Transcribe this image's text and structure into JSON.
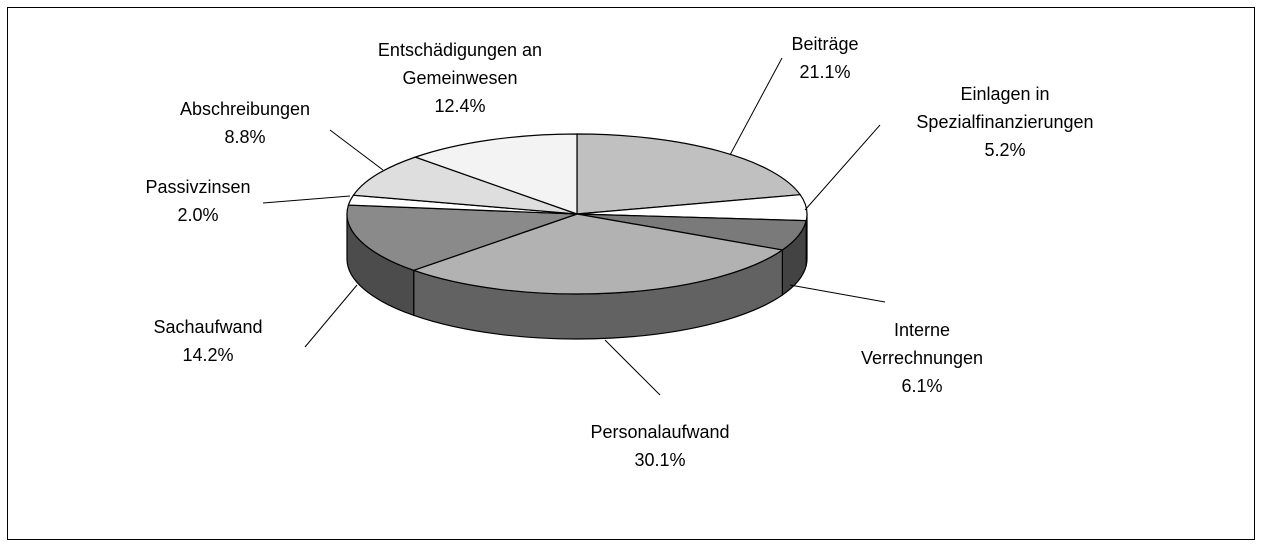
{
  "chart_data": {
    "type": "pie3d",
    "categories": [
      "Beiträge",
      "Einlagen in Spezialfinanzierungen",
      "Interne Verrechnungen",
      "Personalaufwand",
      "Sachaufwand",
      "Passivzinsen",
      "Abschreibungen",
      "Entschädigungen an Gemeinwesen"
    ],
    "values": [
      21.1,
      5.2,
      6.1,
      30.1,
      14.2,
      2.0,
      8.8,
      12.4
    ],
    "value_labels": [
      "21.1%",
      "5.2%",
      "6.1%",
      "30.1%",
      "14.2%",
      "2.0%",
      "8.8%",
      "12.4%"
    ],
    "colors": [
      "#c0c0c0",
      "#ffffff",
      "#7a7a7a",
      "#b2b2b2",
      "#8a8a8a",
      "#ffffff",
      "#dedede",
      "#f3f3f3"
    ]
  }
}
